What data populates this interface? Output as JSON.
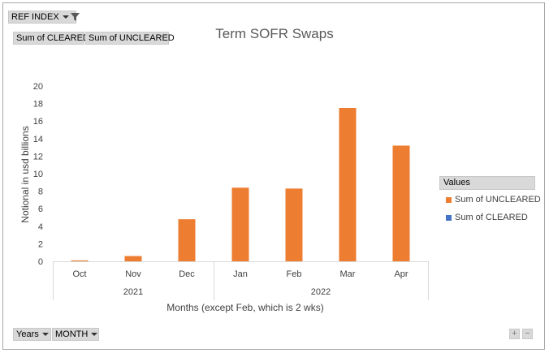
{
  "filter_button": {
    "label": "REF INDEX"
  },
  "value_buttons": [
    {
      "label": "Sum of CLEARED"
    },
    {
      "label": "Sum of UNCLEARED"
    }
  ],
  "axis_buttons": [
    {
      "label": "Years"
    },
    {
      "label": "MONTH"
    }
  ],
  "expand_buttons": {
    "plus": "+",
    "minus": "−"
  },
  "legend": {
    "header": "Values",
    "items": [
      {
        "label": "Sum of UNCLEARED",
        "color": "#ED7D31"
      },
      {
        "label": "Sum of CLEARED",
        "color": "#4472C4"
      }
    ]
  },
  "chart_data": {
    "type": "bar",
    "title": "Term SOFR Swaps",
    "xlabel": "Months (except Feb, which is 2 wks)",
    "ylabel": "Notional in usd billions",
    "ylim": [
      0,
      20
    ],
    "yticks": [
      0,
      2,
      4,
      6,
      8,
      10,
      12,
      14,
      16,
      18,
      20
    ],
    "categories": [
      "Oct",
      "Nov",
      "Dec",
      "Jan",
      "Feb",
      "Mar",
      "Apr"
    ],
    "groups": [
      {
        "label": "2021",
        "categories": [
          "Oct",
          "Nov",
          "Dec"
        ]
      },
      {
        "label": "2022",
        "categories": [
          "Jan",
          "Feb",
          "Mar",
          "Apr"
        ]
      }
    ],
    "series": [
      {
        "name": "Sum of UNCLEARED",
        "color": "#ED7D31",
        "values": [
          0.1,
          0.6,
          4.8,
          8.4,
          8.3,
          17.5,
          13.2
        ]
      },
      {
        "name": "Sum of CLEARED",
        "color": "#4472C4",
        "values": [
          0,
          0,
          0,
          0,
          0,
          0,
          0
        ]
      }
    ],
    "grid": false,
    "legend_position": "right"
  }
}
